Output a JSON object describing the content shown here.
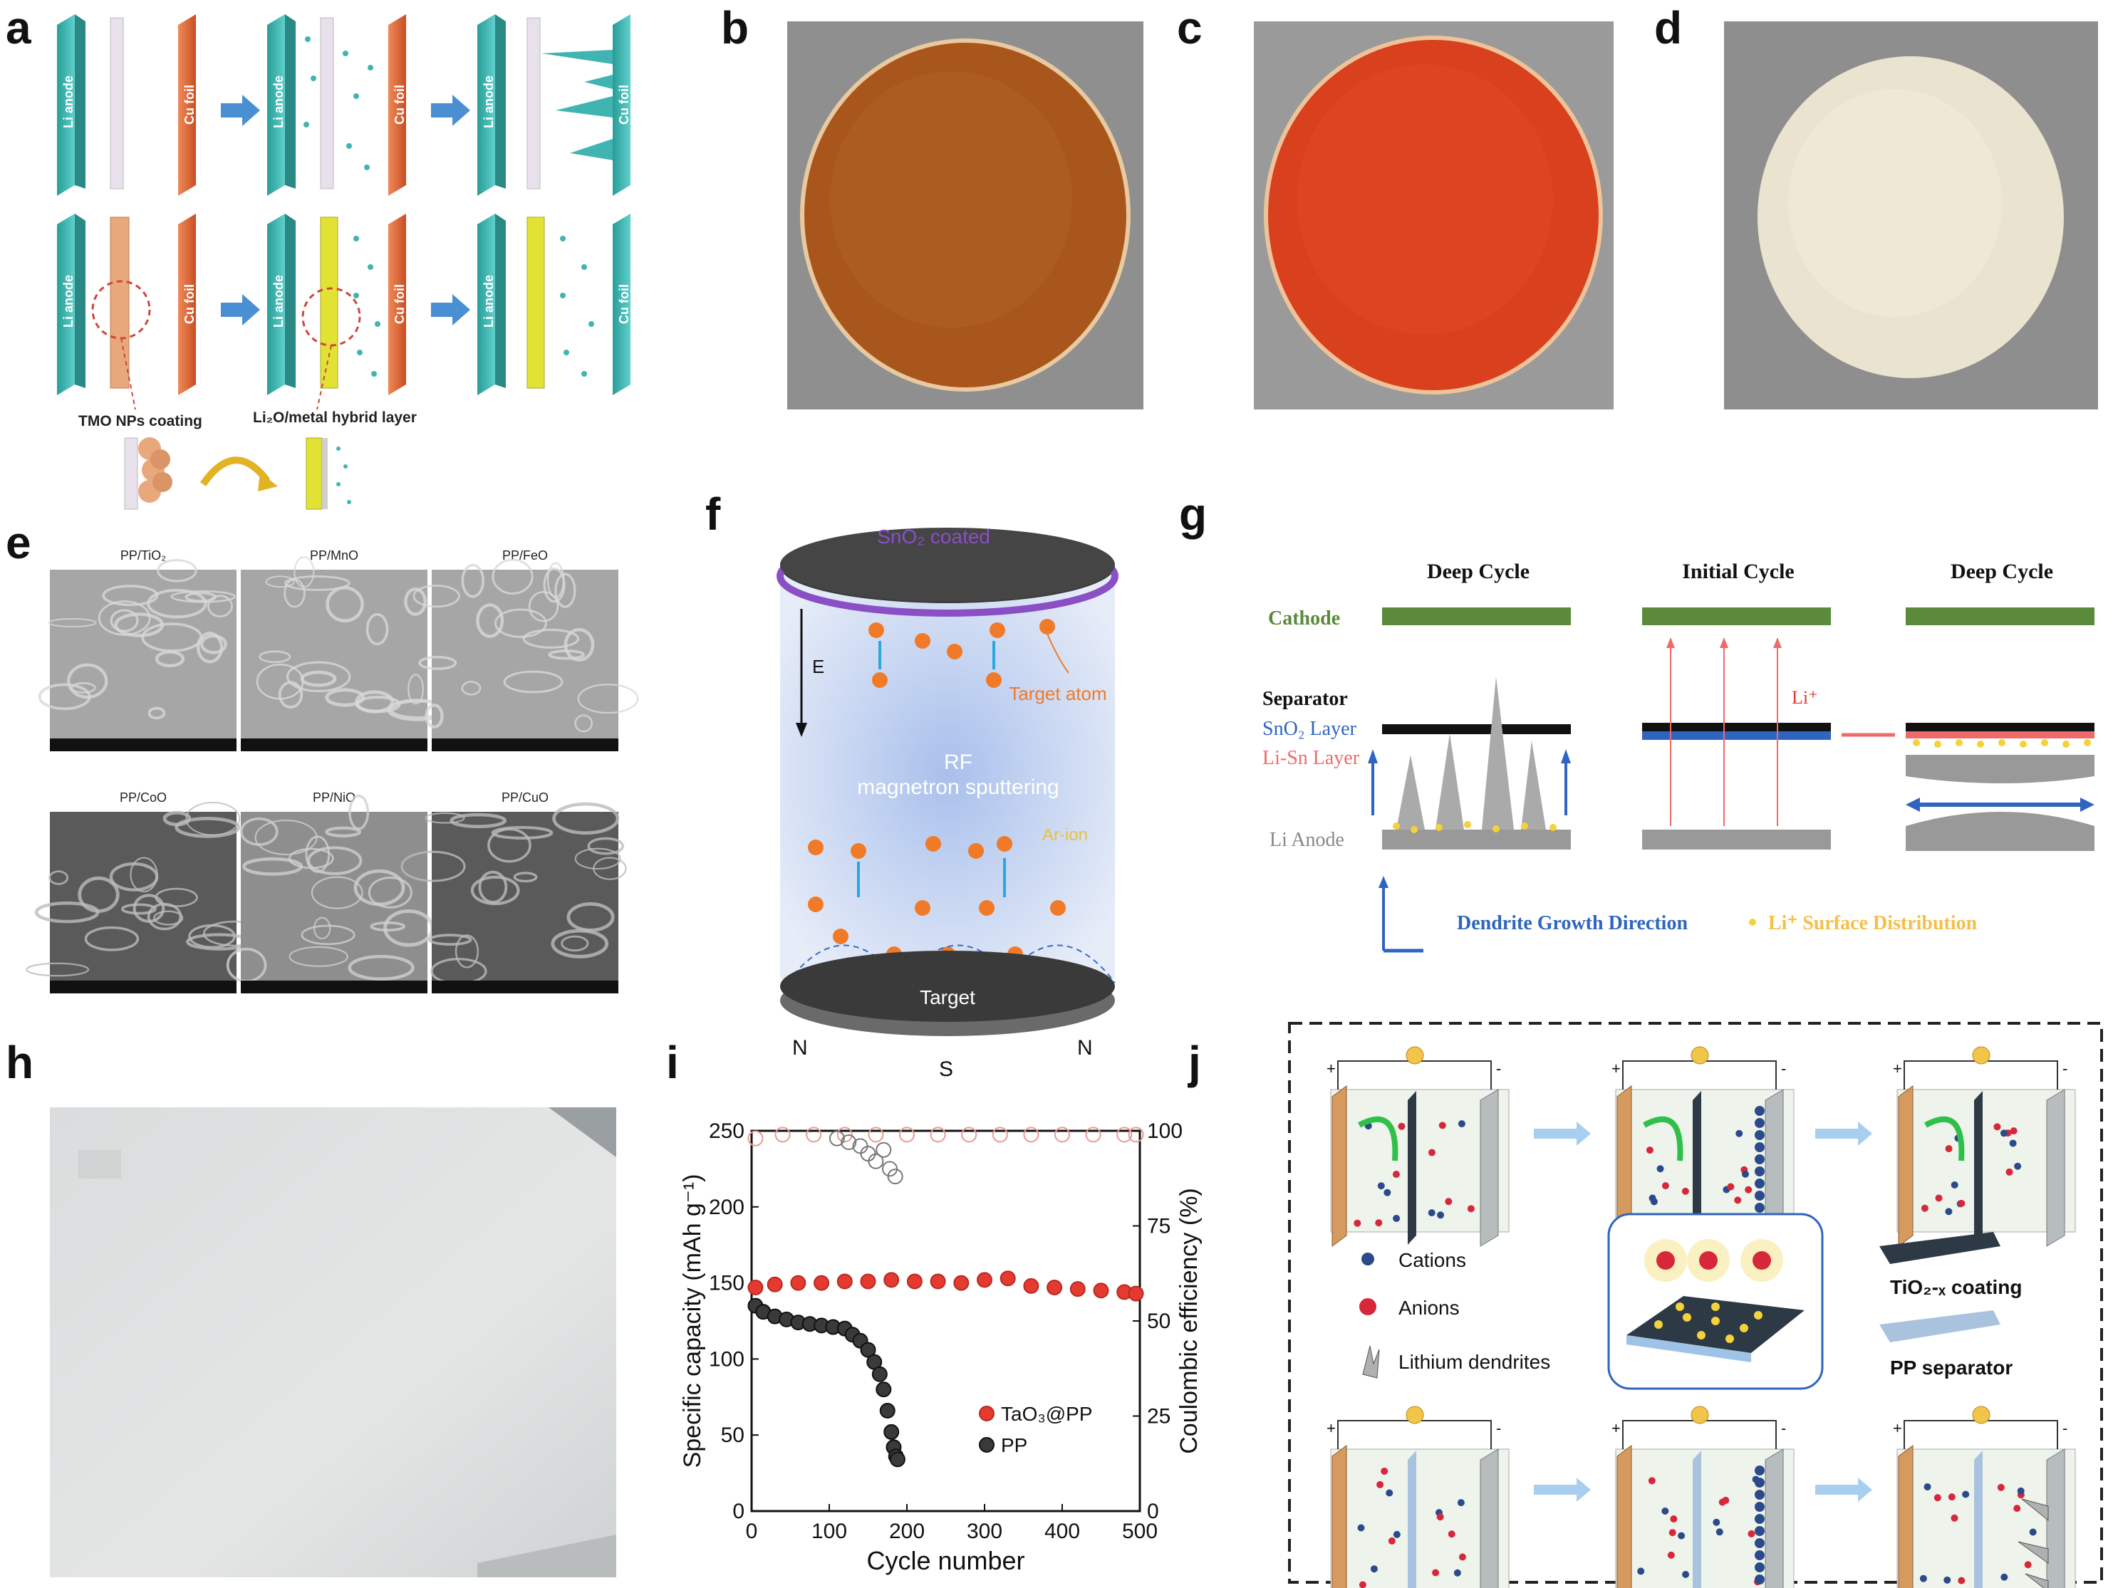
{
  "letters": {
    "a": "a",
    "b": "b",
    "c": "c",
    "d": "d",
    "e": "e",
    "f": "f",
    "g": "g",
    "h": "h",
    "i": "i",
    "j": "j"
  },
  "colors": {
    "teal": "#3fb4b0",
    "copper": "#e2693a",
    "copper_dark": "#c84e22",
    "tmo": "#e8a87c",
    "hybrid": "#e2e235",
    "arrow_blue": "#4a8fd1",
    "disc_b": "#a9561c",
    "disc_c": "#d8401e",
    "disc_d": "#e9e3cf",
    "sem_bg": "#8a8a8a",
    "green": "#5a8a3a",
    "blue": "#2f64c0",
    "pink": "#ef6a6a",
    "orange": "#f07a28",
    "red_point": "#e53a2f",
    "dark_point": "#3a3a3a"
  },
  "panel_a": {
    "li_anode": "Li anode",
    "cu_foil": "Cu foil",
    "tmo_label": "TMO NPs coating",
    "hybrid_label": "Li₂O/metal hybrid layer"
  },
  "panel_e": {
    "tiles": [
      {
        "label": "PP/TiO₂",
        "tone": "light"
      },
      {
        "label": "PP/MnO",
        "tone": "light"
      },
      {
        "label": "PP/FeO",
        "tone": "light"
      },
      {
        "label": "PP/CoO",
        "tone": "dark"
      },
      {
        "label": "PP/NiO",
        "tone": "mid"
      },
      {
        "label": "PP/CuO",
        "tone": "dark"
      }
    ]
  },
  "panel_f": {
    "top_label": "SnO₂ coated",
    "e_label": "E",
    "target_atom": "Target atom",
    "rf_line1": "RF",
    "rf_line2": "magnetron sputtering",
    "ar_ion": "Ar-ion",
    "target": "Target",
    "n_left": "N",
    "s": "S",
    "n_right": "N"
  },
  "panel_g": {
    "col_titles": [
      "Deep Cycle",
      "Initial Cycle",
      "Deep Cycle"
    ],
    "cathode": "Cathode",
    "separator": "Separator",
    "sno2_layer": "SnO₂ Layer",
    "lisn_layer": "Li-Sn Layer",
    "li_anode": "Li Anode",
    "li_plus": "Li⁺",
    "legend_dendrite": "Dendrite Growth Direction",
    "legend_surface": "Li⁺ Surface Distribution"
  },
  "panel_j": {
    "cations": "Cations",
    "anions": "Anions",
    "dendrites": "Lithium dendrites",
    "coating": "TiO₂-ₓ coating",
    "pp_separator": "PP separator"
  },
  "chart_data": {
    "type": "scatter",
    "xlabel": "Cycle number",
    "ylabel": "Specific capacity (mAh g⁻¹)",
    "y2label": "Coulombic efficiency (%)",
    "xlim": [
      0,
      500
    ],
    "ylim": [
      0,
      250
    ],
    "y2lim": [
      0,
      100
    ],
    "x_ticks": [
      "0",
      "100",
      "200",
      "300",
      "400",
      "500"
    ],
    "y_ticks": [
      "0",
      "50",
      "100",
      "150",
      "200",
      "250"
    ],
    "y2_ticks": [
      "0",
      "25",
      "50",
      "75",
      "100"
    ],
    "legend_position": "bottom-right",
    "series": [
      {
        "name": "TaO₃@PP",
        "axis": "left",
        "marker": "filled-red",
        "x": [
          5,
          30,
          60,
          90,
          120,
          150,
          180,
          210,
          240,
          270,
          300,
          330,
          360,
          390,
          420,
          450,
          480,
          495
        ],
        "y": [
          147,
          149,
          150,
          150,
          151,
          151,
          152,
          151,
          151,
          150,
          152,
          153,
          148,
          147,
          146,
          145,
          144,
          143
        ]
      },
      {
        "name": "PP",
        "axis": "left",
        "marker": "filled-dark",
        "x": [
          5,
          15,
          30,
          45,
          60,
          75,
          90,
          105,
          120,
          130,
          140,
          150,
          158,
          165,
          170,
          175,
          180,
          183,
          186,
          188
        ],
        "y": [
          135,
          131,
          128,
          126,
          124,
          123,
          122,
          121,
          120,
          116,
          112,
          106,
          98,
          90,
          80,
          66,
          52,
          42,
          36,
          34
        ]
      },
      {
        "name": "",
        "axis": "right",
        "marker": "open-red",
        "x": [
          5,
          40,
          80,
          120,
          160,
          200,
          240,
          280,
          320,
          360,
          400,
          440,
          480,
          495
        ],
        "y": [
          98,
          99,
          99,
          99,
          99,
          99,
          99,
          99,
          99,
          99,
          99,
          99,
          99,
          99
        ]
      },
      {
        "name": "",
        "axis": "right",
        "marker": "open-gray",
        "x": [
          110,
          125,
          140,
          150,
          160,
          170,
          178,
          185
        ],
        "y": [
          98,
          97,
          96,
          94,
          92,
          95,
          90,
          88
        ]
      }
    ]
  }
}
